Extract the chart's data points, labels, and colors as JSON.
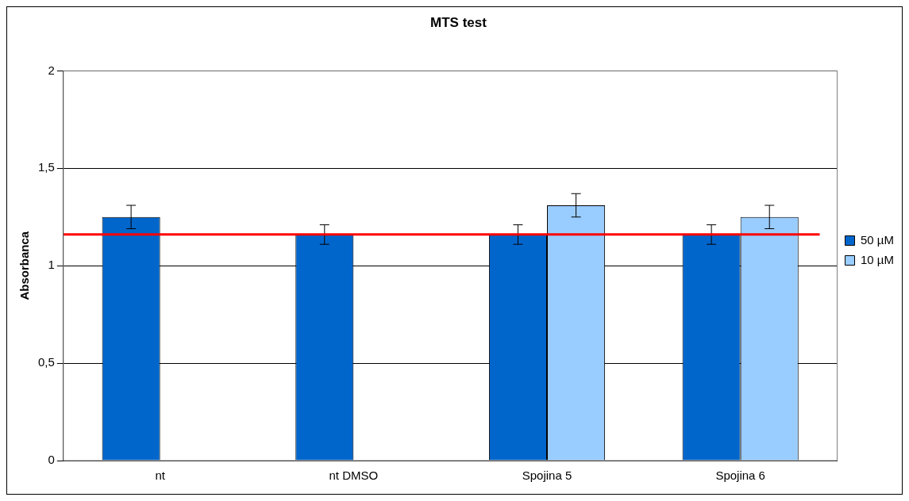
{
  "chart_data": {
    "type": "bar",
    "title": "MTS test",
    "ylabel": "Absorbanca",
    "categories": [
      "nt",
      "nt DMSO",
      "Spojina 5",
      "Spojina 6"
    ],
    "series": [
      {
        "name": "50 µM",
        "color": "#0066cc",
        "values": [
          1.25,
          1.16,
          1.16,
          1.16
        ],
        "errors": [
          0.06,
          0.05,
          0.05,
          0.05
        ]
      },
      {
        "name": "10 µM",
        "color": "#99ccff",
        "values": [
          null,
          null,
          1.31,
          1.25
        ],
        "errors": [
          null,
          null,
          0.06,
          0.06
        ]
      }
    ],
    "ylim": [
      0,
      2
    ],
    "yticks": [
      0,
      {
        "value": 0.5,
        "label": "0,5"
      },
      1,
      {
        "value": 1.5,
        "label": "1,5"
      },
      2
    ],
    "ref_lines": [
      {
        "axis": "y",
        "value": 1.16,
        "color": "#ff0000"
      }
    ],
    "grid": "y",
    "legend": "right"
  }
}
